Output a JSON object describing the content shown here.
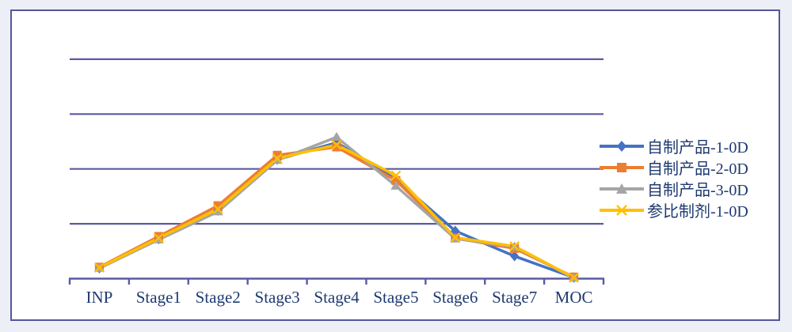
{
  "window": {
    "background_color": "#ecf0f6",
    "panel_background": "#ffffff",
    "panel_border_color": "#55559c"
  },
  "chart_data": {
    "type": "line",
    "title": "",
    "xlabel": "",
    "ylabel": "",
    "categories": [
      "INP",
      "Stage1",
      "Stage2",
      "Stage3",
      "Stage4",
      "Stage5",
      "Stage6",
      "Stage7",
      "MOC"
    ],
    "series": [
      {
        "name": "自制产品-1-0D",
        "color": "#4472C4",
        "marker": "diamond",
        "values": [
          0.19,
          0.72,
          1.24,
          2.17,
          2.48,
          1.81,
          0.87,
          0.41,
          0.02
        ]
      },
      {
        "name": "自制产品-2-0D",
        "color": "#ED7D31",
        "marker": "square",
        "values": [
          0.21,
          0.77,
          1.33,
          2.25,
          2.4,
          1.79,
          0.74,
          0.55,
          0.03
        ]
      },
      {
        "name": "自制产品-3-0D",
        "color": "#A5A5A5",
        "marker": "triangle",
        "values": [
          0.19,
          0.71,
          1.22,
          2.16,
          2.58,
          1.69,
          0.73,
          0.58,
          0.01
        ]
      },
      {
        "name": "参比制剂-1-0D",
        "color": "#FFC000",
        "marker": "x",
        "values": [
          0.2,
          0.74,
          1.27,
          2.19,
          2.44,
          1.88,
          0.75,
          0.59,
          0.02
        ]
      }
    ],
    "y_axis": {
      "labels_visible": false,
      "min": 0,
      "max": 4.9,
      "gridline_step": 1,
      "gridlines_at": [
        1,
        2,
        3,
        4
      ],
      "grid_on": true,
      "gridline_color": "#5b5aa5",
      "axis_color": "#5b5aa5"
    },
    "x_axis": {
      "tick_marks": true,
      "label_color": "#1f3a70"
    },
    "legend_position": "right",
    "line_width": 3.5
  }
}
